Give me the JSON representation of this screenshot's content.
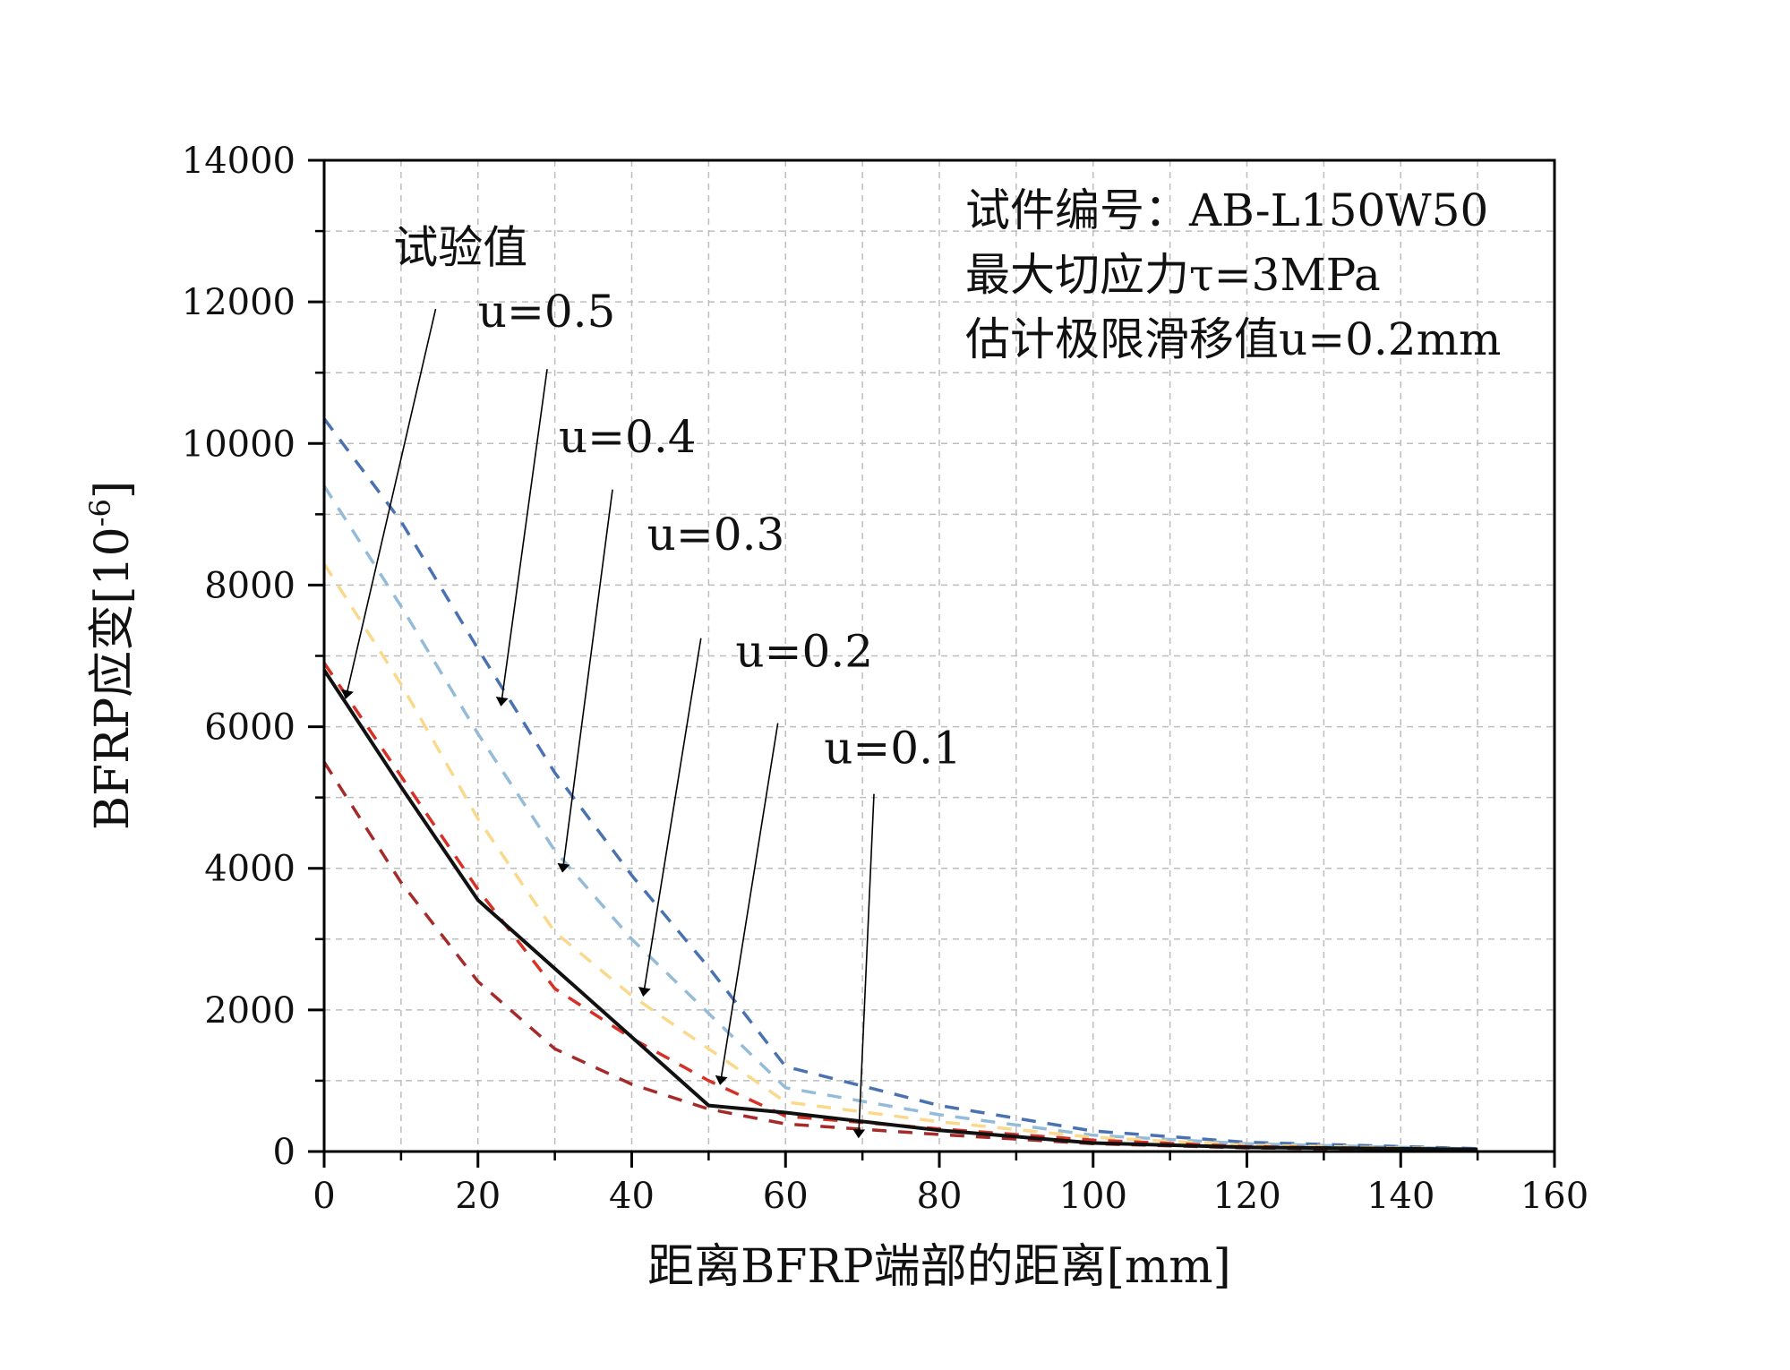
{
  "chart_data": {
    "type": "line",
    "title": "",
    "xlabel": "距离BFRP端部的距离[mm]",
    "ylabel_main": "BFRP应变[10",
    "ylabel_exp": "-6",
    "ylabel_close": "]",
    "xlim": [
      0,
      160
    ],
    "ylim": [
      0,
      14000
    ],
    "xticks": [
      0,
      20,
      40,
      60,
      80,
      100,
      120,
      140,
      160
    ],
    "yticks": [
      0,
      2000,
      4000,
      6000,
      8000,
      10000,
      12000,
      14000
    ],
    "xtick_labels": [
      "0",
      "20",
      "40",
      "60",
      "80",
      "100",
      "120",
      "140",
      "160"
    ],
    "ytick_labels": [
      "0",
      "2000",
      "4000",
      "6000",
      "8000",
      "10000",
      "12000",
      "14000"
    ],
    "grid": true,
    "info_lines": [
      "试件编号：AB-L150W50",
      "最大切应力τ=3MPa",
      "估计极限滑移值u=0.2mm"
    ],
    "series": [
      {
        "name": "u=0.5",
        "color": "#4a72b0",
        "dashed": true,
        "x": [
          0,
          10,
          20,
          30,
          40,
          50,
          60,
          80,
          100,
          120,
          150
        ],
        "y": [
          10350,
          8900,
          7100,
          5350,
          3900,
          2600,
          1200,
          650,
          290,
          130,
          40
        ]
      },
      {
        "name": "u=0.4",
        "color": "#94bcd9",
        "dashed": true,
        "x": [
          0,
          10,
          20,
          30,
          40,
          50,
          60,
          80,
          100,
          120,
          150
        ],
        "y": [
          9400,
          7700,
          5900,
          4250,
          3000,
          1950,
          900,
          520,
          230,
          110,
          35
        ]
      },
      {
        "name": "u=0.3",
        "color": "#fad98c",
        "dashed": true,
        "x": [
          0,
          10,
          20,
          30,
          40,
          50,
          60,
          80,
          100,
          120,
          150
        ],
        "y": [
          8300,
          6600,
          4700,
          3100,
          2200,
          1450,
          700,
          420,
          200,
          90,
          30
        ]
      },
      {
        "name": "u=0.2",
        "color": "#d73027",
        "dashed": true,
        "x": [
          0,
          10,
          20,
          30,
          40,
          50,
          60,
          80,
          100,
          120,
          150
        ],
        "y": [
          6900,
          5300,
          3700,
          2300,
          1600,
          1000,
          500,
          320,
          160,
          70,
          25
        ]
      },
      {
        "name": "u=0.1",
        "color": "#a52a2a",
        "dashed": true,
        "x": [
          0,
          10,
          20,
          30,
          40,
          50,
          60,
          80,
          100,
          120,
          150
        ],
        "y": [
          5500,
          3800,
          2400,
          1450,
          950,
          600,
          390,
          240,
          110,
          50,
          20
        ]
      },
      {
        "name": "试验值",
        "color": "#111111",
        "dashed": false,
        "x": [
          0,
          10,
          20,
          50,
          60,
          80,
          100,
          120,
          150
        ],
        "y": [
          6800,
          5150,
          3550,
          650,
          550,
          300,
          120,
          60,
          30
        ]
      }
    ],
    "annotations": [
      {
        "text": "试验值",
        "label_x": 9,
        "label_y": 12550,
        "from_x": 14.5,
        "from_y": 11900,
        "to_x": 2.8,
        "to_y": 6400
      },
      {
        "text": "u=0.5",
        "label_x": 20,
        "label_y": 11650,
        "from_x": 29,
        "from_y": 11050,
        "to_x": 23,
        "to_y": 6300
      },
      {
        "text": "u=0.4",
        "label_x": 30.5,
        "label_y": 9880,
        "from_x": 37.5,
        "from_y": 9350,
        "to_x": 31,
        "to_y": 3950
      },
      {
        "text": "u=0.3",
        "label_x": 42,
        "label_y": 8500,
        "from_x": 49,
        "from_y": 7250,
        "to_x": 41.5,
        "to_y": 2200
      },
      {
        "text": "u=0.2",
        "label_x": 53.5,
        "label_y": 6850,
        "from_x": 59,
        "from_y": 6050,
        "to_x": 51.5,
        "to_y": 950
      },
      {
        "text": "u=0.1",
        "label_x": 65,
        "label_y": 5480,
        "from_x": 71.5,
        "from_y": 5050,
        "to_x": 69.5,
        "to_y": 200
      }
    ]
  }
}
